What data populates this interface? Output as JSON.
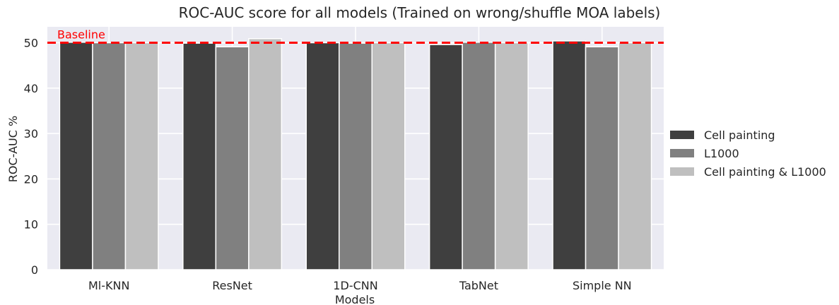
{
  "chart_data": {
    "type": "bar",
    "title": "ROC-AUC score for all models (Trained on wrong/shuffle MOA labels)",
    "xlabel": "Models",
    "ylabel": "ROC-AUC %",
    "categories": [
      "Ml-KNN",
      "ResNet",
      "1D-CNN",
      "TabNet",
      "Simple NN"
    ],
    "series": [
      {
        "name": "Cell painting",
        "color": "#3f3f3f",
        "values": [
          50.1,
          49.9,
          50.0,
          49.6,
          50.4
        ]
      },
      {
        "name": "L1000",
        "color": "#808080",
        "values": [
          50.0,
          49.1,
          49.9,
          50.1,
          49.1
        ]
      },
      {
        "name": "Cell painting & L1000",
        "color": "#bfbfbf",
        "values": [
          50.0,
          50.9,
          50.0,
          50.0,
          50.0
        ]
      }
    ],
    "ylim": [
      0,
      53.5
    ],
    "yticks": [
      0,
      10,
      20,
      30,
      40,
      50
    ],
    "grid": true,
    "legend_position": "right",
    "baseline": {
      "value": 50,
      "label": "Baseline",
      "color": "#ff0000"
    },
    "background_color": "#eaeaf2"
  }
}
